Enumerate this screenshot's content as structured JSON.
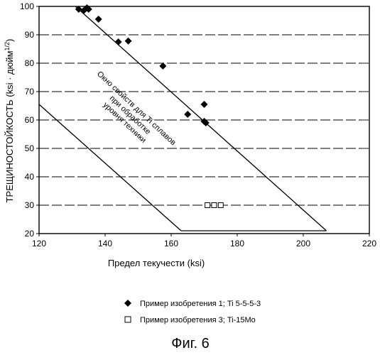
{
  "chart_data": {
    "type": "scatter",
    "xlabel": "Предел текучести  (ksi)",
    "ylabel": "ТРЕЩИНОСТОЙКОСТЬ (ksi · дюйм",
    "ylabel_sup": "1/2",
    "ylabel_close": ")",
    "xlim": [
      120,
      220
    ],
    "ylim": [
      20,
      100
    ],
    "x_ticks": [
      120,
      140,
      160,
      180,
      200,
      220
    ],
    "y_ticks": [
      20,
      30,
      40,
      50,
      60,
      70,
      80,
      90,
      100
    ],
    "grid": "horizontal dashed",
    "legend_position": "bottom",
    "series": [
      {
        "name": "Пример изобретения 1; Ti 5-5-5-3",
        "marker": "filled-diamond",
        "color": "#000000",
        "points": [
          {
            "x": 132,
            "y": 99
          },
          {
            "x": 133.5,
            "y": 98.5
          },
          {
            "x": 134.5,
            "y": 99.5
          },
          {
            "x": 135,
            "y": 99
          },
          {
            "x": 138,
            "y": 95.5
          },
          {
            "x": 144,
            "y": 87.5
          },
          {
            "x": 147,
            "y": 87.8
          },
          {
            "x": 157.5,
            "y": 79
          },
          {
            "x": 165,
            "y": 62
          },
          {
            "x": 170,
            "y": 65.5
          },
          {
            "x": 170,
            "y": 59.5
          },
          {
            "x": 170.5,
            "y": 59
          }
        ]
      },
      {
        "name": "Пример изобретения 3; Ti-15Mo",
        "marker": "hollow-square",
        "color": "#000000",
        "points": [
          {
            "x": 171,
            "y": 30
          },
          {
            "x": 173,
            "y": 30
          },
          {
            "x": 175,
            "y": 30
          }
        ]
      }
    ],
    "property_window": {
      "label_lines": [
        "Окно свойств для Ti сплавов",
        "при обработке",
        "уровня техники"
      ],
      "upper_boundary": [
        [
          131,
          100
        ],
        [
          207,
          21
        ]
      ],
      "lower_boundary": [
        [
          120,
          65.5
        ],
        [
          163,
          21
        ]
      ],
      "bottom_boundary": [
        [
          163,
          21
        ],
        [
          207,
          21
        ]
      ]
    }
  },
  "caption": "Фиг. 6"
}
